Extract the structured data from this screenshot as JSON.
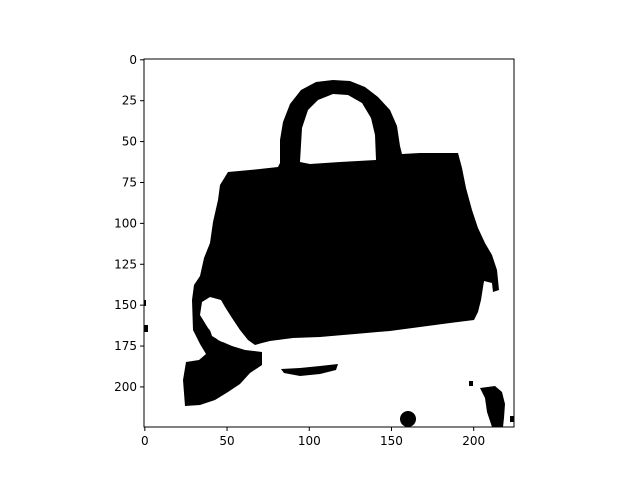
{
  "figure": {
    "type": "image",
    "description_free": true,
    "colormap": "binary",
    "x_axis": {
      "ticks": [
        0,
        50,
        100,
        150,
        200
      ],
      "lim": [
        0,
        224
      ]
    },
    "y_axis": {
      "ticks": [
        0,
        25,
        50,
        75,
        100,
        125,
        150,
        175,
        200
      ],
      "lim": [
        224,
        0
      ],
      "inverted": true
    }
  }
}
